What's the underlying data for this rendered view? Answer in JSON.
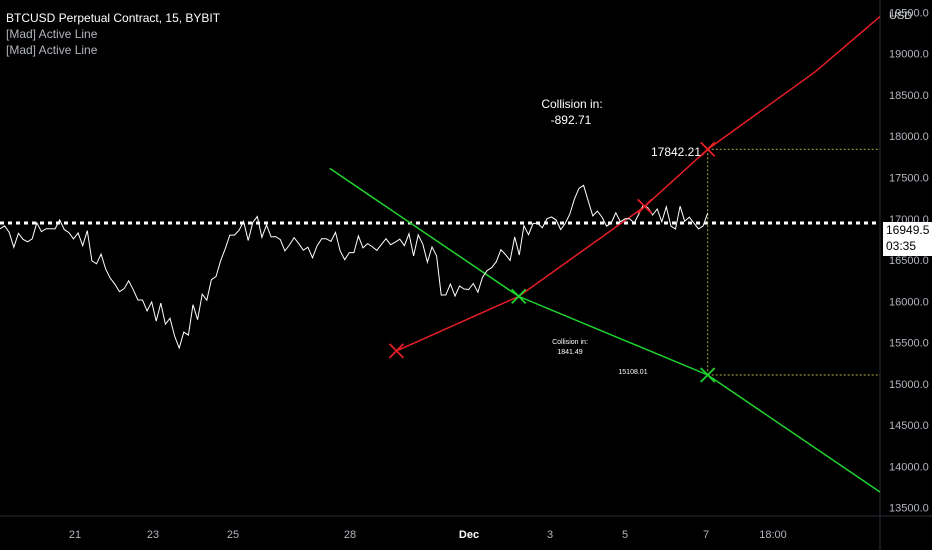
{
  "legend": {
    "title": "BTCUSD Perpetual Contract, 15, BYBIT",
    "indicators": [
      "[Mad] Active Line",
      "[Mad] Active Line"
    ]
  },
  "price_axis": {
    "currency": "USD",
    "ticks": [
      "19500.0",
      "19000.0",
      "18500.0",
      "18000.0",
      "17500.0",
      "17000.0",
      "16500.0",
      "16000.0",
      "15500.0",
      "15000.0",
      "14500.0",
      "14000.0",
      "13500.0"
    ],
    "last_price": "16949.5",
    "countdown": "03:35"
  },
  "chart_data": {
    "type": "line",
    "ylim": [
      13400,
      19650
    ],
    "x_ticks": [
      "21",
      "23",
      "25",
      "28",
      "Dec",
      "3",
      "5",
      "7",
      "18:00"
    ],
    "colors": {
      "resistance": "#e81e26",
      "support": "#1fd42e",
      "price": "#ffffff",
      "background": "#000000"
    },
    "series": [
      {
        "kind": "price",
        "values": [
          16770,
          16800,
          16860,
          16830,
          16880,
          16880,
          16950,
          16760,
          16720,
          16710,
          16600,
          16500,
          16280,
          16190,
          16140,
          15980,
          15920,
          15870,
          15650,
          15580,
          15700,
          15850,
          16050,
          16300,
          16600,
          16730,
          16860,
          16810,
          16920,
          16890,
          16820,
          16720,
          16700,
          16620,
          16600,
          16650,
          16690,
          16650,
          16700,
          16720,
          16700,
          16690,
          16650,
          16680,
          16710,
          16660,
          16620,
          16660,
          16150,
          16100,
          16150,
          16180,
          16220,
          16300,
          16480,
          16640,
          16670,
          16880,
          16980,
          17000,
          16950,
          16870,
          17130,
          17260,
          17180,
          17130,
          17020,
          17000,
          17000,
          17020,
          17060,
          17010,
          17000,
          17020,
          17080,
          17020,
          16950,
          16960
        ]
      },
      {
        "kind": "line",
        "points": [
          [
            21.4,
            15400
          ],
          [
            28,
            16060
          ],
          [
            34.8,
            17150
          ],
          [
            38.2,
            17842.21
          ],
          [
            44,
            18780
          ],
          [
            47.5,
            19450
          ]
        ]
      },
      {
        "kind": "line",
        "points": [
          [
            17.8,
            17610
          ],
          [
            28,
            16060
          ],
          [
            38.2,
            15108.01
          ],
          [
            47.5,
            13690
          ]
        ]
      }
    ],
    "markers": [
      {
        "x": 21.4,
        "y": 15400,
        "color": "resistance"
      },
      {
        "x": 34.8,
        "y": 17150,
        "color": "resistance"
      },
      {
        "x": 38.2,
        "y": 17842.21,
        "color": "resistance"
      },
      {
        "x": 28,
        "y": 16060,
        "color": "support"
      },
      {
        "x": 38.2,
        "y": 15108.01,
        "color": "support"
      }
    ],
    "annotations": {
      "upper": {
        "title": "Collision in:",
        "value": "-892.71",
        "price": "17842.21"
      },
      "lower": {
        "title": "Collision in:",
        "value": "1841.49",
        "price": "15108.01"
      }
    },
    "last_price_value": 16949.5,
    "grid": false
  }
}
